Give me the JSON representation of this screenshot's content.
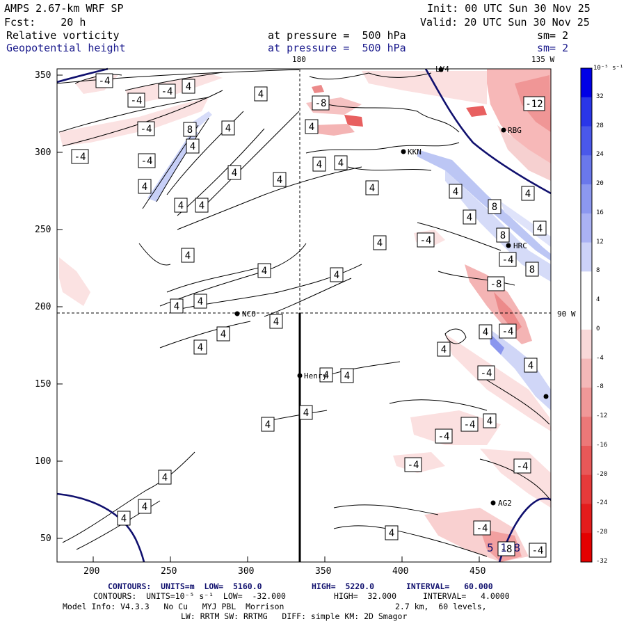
{
  "header": {
    "model": "AMPS 2.67-km WRF SP",
    "forecast": "Fcst:    20 h",
    "init": "Init: 00 UTC Sun 30 Nov 25",
    "valid": "Valid: 20 UTC Sun 30 Nov 25",
    "field1": "Relative vorticity",
    "field2": "Geopotential height",
    "pressure1": "at pressure =  500 hPa",
    "pressure2": "at pressure =  500 hPa",
    "sm1": "sm= 2",
    "sm2": "sm= 2"
  },
  "map": {
    "top_labels": [
      "180",
      "135 W"
    ],
    "right_label": "90 W",
    "x_ticks": [
      "200",
      "250",
      "300",
      "350",
      "400",
      "450"
    ],
    "y_ticks": [
      "350",
      "300",
      "250",
      "200",
      "150",
      "100",
      "50"
    ],
    "stations": [
      "LV4",
      "RBG",
      "KKN",
      "HRC",
      "NCO",
      "Henry",
      "AG2"
    ],
    "height_label": "5 1 8",
    "contour_labels": [
      "-4",
      "4",
      "8",
      "-8",
      "-12"
    ]
  },
  "colorbar": {
    "unit": "10⁻⁵ s⁻¹",
    "labels": [
      "32",
      "28",
      "24",
      "20",
      "16",
      "12",
      "8",
      "4",
      "0",
      "-4",
      "-8",
      "-12",
      "-16",
      "-20",
      "-24",
      "-28",
      "-32"
    ],
    "colors": [
      "#0000e6",
      "#2a36e8",
      "#4a58ea",
      "#6a78ec",
      "#8c98f0",
      "#aab2f4",
      "#ccd2f8",
      "#ffffff",
      "#ffffff",
      "#f8d8d8",
      "#f4b8b8",
      "#f09898",
      "#ec7878",
      "#e85858",
      "#e63a3a",
      "#e41c1c",
      "#e40000"
    ]
  },
  "footer": {
    "line1_a": "CONTOURS:  UNITS=m  LOW=  5160.0",
    "line1_b": "HIGH=  5220.0",
    "line1_c": "INTERVAL=   60.000",
    "line2_a": "CONTOURS:  UNITS=10⁻⁵ s⁻¹  LOW=  -32.000",
    "line2_b": "HIGH=  32.000",
    "line2_c": "INTERVAL=   4.0000",
    "line3_a": "Model Info: V4.3.3   No Cu   MYJ PBL  Morrison",
    "line3_b": "2.7 km,  60 levels,",
    "line4": "LW: RRTM SW: RRTMG   DIFF: simple KM: 2D Smagor"
  }
}
